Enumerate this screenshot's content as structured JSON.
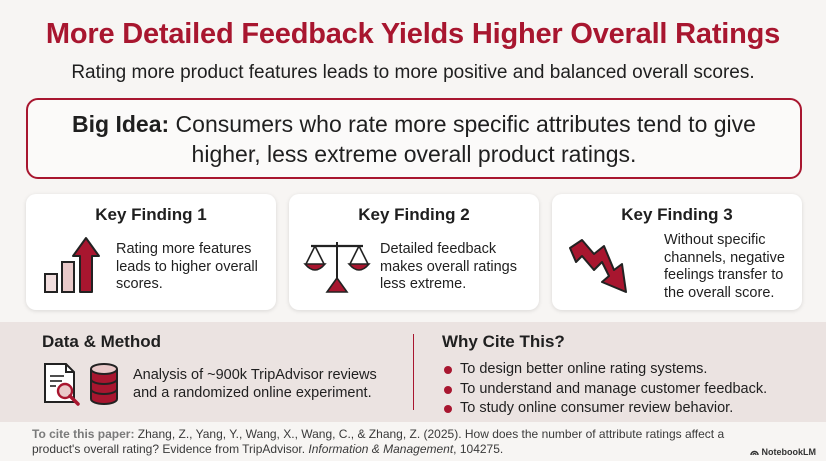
{
  "header": {
    "title": "More Detailed Feedback Yields Higher Overall Ratings",
    "subtitle": "Rating more product features leads to more positive and balanced overall scores."
  },
  "big_idea": {
    "label": "Big Idea:",
    "text": " Consumers who rate more specific attributes tend to give higher, less extreme overall product ratings."
  },
  "findings": [
    {
      "title": "Key Finding 1",
      "text": "Rating more features leads to higher overall scores.",
      "icon": "bar-chart-arrow-up-icon"
    },
    {
      "title": "Key Finding 2",
      "text": "Detailed feedback makes overall ratings less extreme.",
      "icon": "balance-scale-icon"
    },
    {
      "title": "Key Finding 3",
      "text": "Without specific channels, negative feelings transfer to the overall score.",
      "icon": "zigzag-arrow-down-icon"
    }
  ],
  "data_method": {
    "title": "Data & Method",
    "text": "Analysis of ~900k TripAdvisor reviews and a randomized online experiment.",
    "icons": [
      "document-search-icon",
      "database-icon"
    ]
  },
  "why_cite": {
    "title": "Why Cite This?",
    "items": [
      "To design better online rating systems.",
      "To understand and manage customer feedback.",
      "To study online consumer review behavior."
    ]
  },
  "citation": {
    "label": "To cite this paper:",
    "text": " Zhang, Z., Yang, Y., Wang, X., Wang, C., & Zhang, Z. (2025). How does the number of attribute ratings affect a product's overall rating? Evidence from TripAdvisor. ",
    "journal": "Information & Management",
    "tail": ", 104275."
  },
  "brand": "NotebookLM",
  "colors": {
    "accent": "#a8162f",
    "light_accent": "#e9c9c9",
    "panel": "#ebe3e1"
  }
}
